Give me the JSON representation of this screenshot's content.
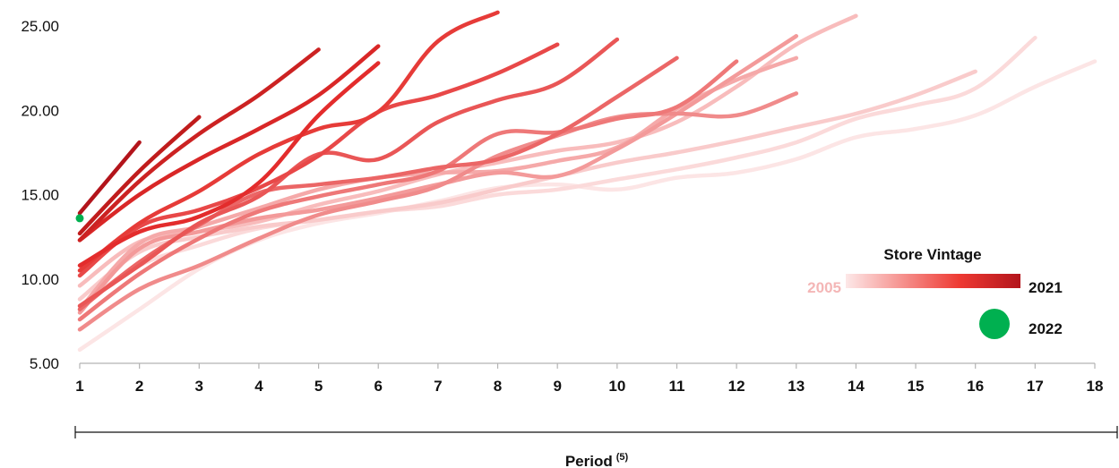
{
  "chart_data": {
    "type": "line",
    "xlabel": "Period",
    "xlabel_superscript": "(5)",
    "ylabel": "",
    "title": "",
    "ylim": [
      5,
      25
    ],
    "yticks": [
      "5.00",
      "10.00",
      "15.00",
      "20.00",
      "25.00"
    ],
    "xlim": [
      1,
      18
    ],
    "xticks": [
      "1",
      "2",
      "3",
      "4",
      "5",
      "6",
      "7",
      "8",
      "9",
      "10",
      "11",
      "12",
      "13",
      "14",
      "15",
      "16",
      "17",
      "18"
    ],
    "grid": false,
    "legend": {
      "title": "Store Vintage",
      "gradient_start_label": "2005",
      "gradient_end_label": "2021",
      "point_label": "2022",
      "placement": "bottom-right",
      "gradient_start_color": "#fde8e8",
      "gradient_mid_color": "#ee3a33",
      "gradient_end_color": "#b3141b",
      "point_color": "#00b050"
    },
    "series": [
      {
        "vintage": 2005,
        "color": "#fce5e5",
        "values": [
          5.8,
          8.2,
          10.6,
          12.3,
          13.3,
          13.9,
          14.6,
          15.4,
          15.6,
          15.3,
          16.0,
          16.3,
          17.1,
          18.4,
          18.9,
          19.7,
          21.4,
          22.9
        ]
      },
      {
        "vintage": 2006,
        "color": "#fbdada",
        "values": [
          8.4,
          10.8,
          12.0,
          13.0,
          13.5,
          14.0,
          14.3,
          15.0,
          15.3,
          15.9,
          16.5,
          17.2,
          18.1,
          19.5,
          20.3,
          21.3,
          24.3
        ]
      },
      {
        "vintage": 2007,
        "color": "#f9cbcb",
        "values": [
          8.8,
          11.6,
          12.5,
          13.1,
          13.5,
          14.0,
          14.5,
          15.3,
          16.1,
          16.9,
          17.5,
          18.2,
          19.0,
          19.8,
          20.9,
          22.3
        ]
      },
      {
        "vintage": 2008,
        "color": "#f8bcbc",
        "values": [
          9.6,
          12.2,
          12.8,
          13.4,
          14.4,
          15.2,
          16.2,
          16.9,
          17.6,
          18.1,
          19.3,
          21.4,
          23.9,
          25.6
        ]
      },
      {
        "vintage": 2009,
        "color": "#f5a9a9",
        "values": [
          8.2,
          12.1,
          13.1,
          14.2,
          15.3,
          16.0,
          16.3,
          16.4,
          17.0,
          17.8,
          20.1,
          21.8,
          23.1
        ]
      },
      {
        "vintage": 2010,
        "color": "#f39a9a",
        "values": [
          8.0,
          11.8,
          12.8,
          13.6,
          14.1,
          14.8,
          15.6,
          16.3,
          16.1,
          17.7,
          19.8,
          22.1,
          24.4
        ]
      },
      {
        "vintage": 2011,
        "color": "#f08b8b",
        "values": [
          7.0,
          9.4,
          10.8,
          12.4,
          13.8,
          14.6,
          15.5,
          17.3,
          18.5,
          19.6,
          19.8,
          19.7,
          21.0
        ]
      },
      {
        "vintage": 2012,
        "color": "#ee7878",
        "values": [
          7.6,
          10.3,
          12.4,
          14.0,
          14.9,
          15.6,
          16.4,
          18.6,
          18.7,
          19.5,
          20.2,
          22.9
        ]
      },
      {
        "vintage": 2013,
        "color": "#eb6666",
        "values": [
          8.2,
          11.0,
          13.2,
          15.1,
          15.6,
          16.0,
          16.6,
          17.1,
          18.6,
          20.8,
          23.1
        ]
      },
      {
        "vintage": 2014,
        "color": "#e95656",
        "values": [
          8.4,
          10.8,
          13.3,
          14.9,
          17.4,
          17.1,
          19.3,
          20.6,
          21.6,
          24.2
        ]
      },
      {
        "vintage": 2015,
        "color": "#e84848",
        "values": [
          10.2,
          13.1,
          14.1,
          15.4,
          17.3,
          19.9,
          20.9,
          22.2,
          23.9
        ]
      },
      {
        "vintage": 2016,
        "color": "#e63b38",
        "values": [
          10.5,
          13.3,
          15.2,
          17.4,
          18.9,
          19.9,
          24.1,
          25.8
        ]
      },
      {
        "vintage": 2017,
        "color": "#e32c2c",
        "values": [
          10.8,
          12.8,
          13.7,
          15.7,
          19.7,
          22.8
        ]
      },
      {
        "vintage": 2018,
        "color": "#d92727",
        "values": [
          12.3,
          15.0,
          17.1,
          18.9,
          20.9,
          23.8
        ]
      },
      {
        "vintage": 2019,
        "color": "#cc2222",
        "values": [
          12.3,
          15.8,
          18.6,
          20.9,
          23.6
        ]
      },
      {
        "vintage": 2020,
        "color": "#c01c1c",
        "values": [
          12.7,
          16.4,
          19.6
        ]
      },
      {
        "vintage": 2021,
        "color": "#b3141b",
        "values": [
          13.9,
          18.1
        ]
      },
      {
        "vintage": 2022,
        "color": "#00b050",
        "type": "point",
        "values": [
          13.6
        ]
      }
    ]
  }
}
